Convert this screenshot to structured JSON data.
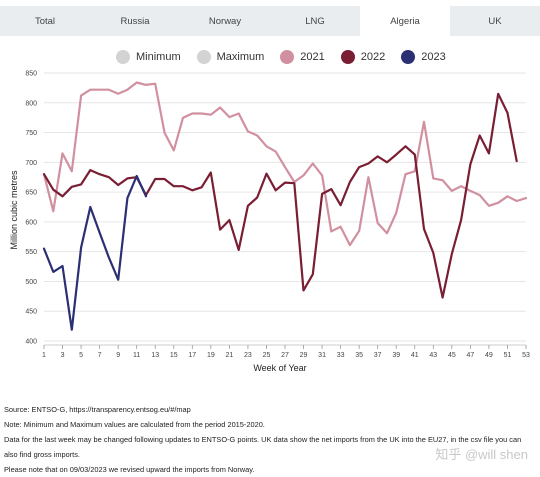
{
  "tabs": [
    {
      "label": "Total",
      "active": false
    },
    {
      "label": "Russia",
      "active": false
    },
    {
      "label": "Norway",
      "active": false
    },
    {
      "label": "LNG",
      "active": false
    },
    {
      "label": "Algeria",
      "active": true
    },
    {
      "label": "UK",
      "active": false
    }
  ],
  "legend": [
    {
      "label": "Minimum",
      "color": "#d3d3d3"
    },
    {
      "label": "Maximum",
      "color": "#d3d3d3"
    },
    {
      "label": "2021",
      "color": "#d1909f"
    },
    {
      "label": "2022",
      "color": "#7a1e33"
    },
    {
      "label": "2023",
      "color": "#2b2f73"
    }
  ],
  "chart_data": {
    "type": "line",
    "xlabel": "Week of Year",
    "ylabel": "Million cubic metres",
    "xlim": [
      1,
      53
    ],
    "ylim": [
      400,
      850
    ],
    "yticks": [
      400,
      450,
      500,
      550,
      600,
      650,
      700,
      750,
      800,
      850
    ],
    "xticks": [
      1,
      3,
      5,
      7,
      9,
      11,
      13,
      15,
      17,
      19,
      21,
      23,
      25,
      27,
      29,
      31,
      33,
      35,
      37,
      39,
      41,
      43,
      45,
      47,
      49,
      51,
      53
    ],
    "grid": true,
    "legend_position": "top",
    "series": [
      {
        "name": "2021",
        "color": "#d1909f",
        "x": [
          1,
          2,
          3,
          4,
          5,
          6,
          7,
          8,
          9,
          10,
          11,
          12,
          13,
          14,
          15,
          16,
          17,
          18,
          19,
          20,
          21,
          22,
          23,
          24,
          25,
          26,
          27,
          28,
          29,
          30,
          31,
          32,
          33,
          34,
          35,
          36,
          37,
          38,
          39,
          40,
          41,
          42,
          43,
          44,
          45,
          46,
          47,
          48,
          49,
          50,
          51,
          52,
          53
        ],
        "values": [
          680,
          618,
          715,
          685,
          812,
          822,
          822,
          822,
          815,
          822,
          834,
          830,
          832,
          750,
          720,
          775,
          782,
          782,
          780,
          792,
          776,
          782,
          752,
          745,
          727,
          718,
          692,
          667,
          678,
          698,
          678,
          584,
          592,
          561,
          585,
          675,
          598,
          581,
          615,
          680,
          685,
          768,
          673,
          670,
          652,
          660,
          652,
          645,
          627,
          632,
          643,
          635,
          640
        ]
      },
      {
        "name": "2022",
        "color": "#7a1e33",
        "x": [
          1,
          2,
          3,
          4,
          5,
          6,
          7,
          8,
          9,
          10,
          11,
          12,
          13,
          14,
          15,
          16,
          17,
          18,
          19,
          20,
          21,
          22,
          23,
          24,
          25,
          26,
          27,
          28,
          29,
          30,
          31,
          32,
          33,
          34,
          35,
          36,
          37,
          38,
          39,
          40,
          41,
          42,
          43,
          44,
          45,
          46,
          47,
          48,
          49,
          50,
          51,
          52
        ],
        "values": [
          680,
          654,
          643,
          659,
          663,
          687,
          680,
          675,
          662,
          673,
          675,
          645,
          672,
          672,
          660,
          660,
          653,
          658,
          683,
          587,
          603,
          553,
          627,
          641,
          681,
          653,
          666,
          665,
          485,
          512,
          647,
          655,
          628,
          667,
          692,
          698,
          710,
          700,
          713,
          727,
          713,
          588,
          548,
          473,
          546,
          603,
          697,
          745,
          715,
          815,
          783,
          702
        ]
      },
      {
        "name": "2023",
        "color": "#2b2f73",
        "x": [
          1,
          2,
          3,
          4,
          5,
          6,
          7,
          8,
          9,
          10,
          11,
          12
        ],
        "values": [
          555,
          516,
          526,
          419,
          557,
          625,
          582,
          540,
          503,
          640,
          677,
          643
        ]
      }
    ]
  },
  "notes": {
    "source": "Source: ENTSO-G,   https://transparency.entsog.eu/#/map",
    "note1": "Note: Minimum and Maximum values are calculated from the period 2015-2020.",
    "note2": "Data for the last week may be changed following updates to ENTSO-G points. UK data show the net imports from the UK into the EU27, in the csv file you can",
    "note3": "also find gross imports.",
    "note4": "Please note that on 09/03/2023 we revised upward the imports from Norway."
  },
  "watermark": "知乎 @will shen"
}
